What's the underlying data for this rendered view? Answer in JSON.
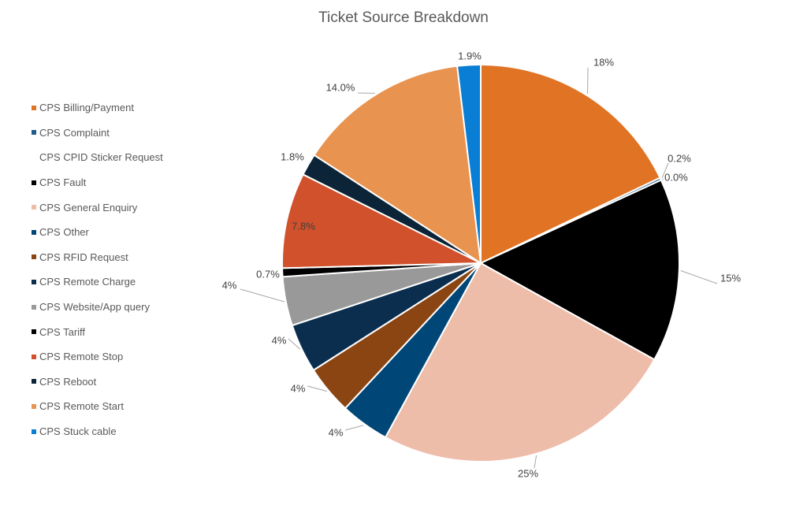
{
  "chart_data": {
    "type": "pie",
    "title": "Ticket Source Breakdown",
    "legend_position": "left",
    "slices": [
      {
        "name": "CPS Billing/Payment",
        "value": 18.0,
        "label": "18%",
        "color": "#E07424"
      },
      {
        "name": "CPS Complaint",
        "value": 0.2,
        "label": "0.2%",
        "color": "#1F5C8B"
      },
      {
        "name": "CPS CPID Sticker Request",
        "value": 0.0,
        "label": "0.0%",
        "color": "#FFFFFF"
      },
      {
        "name": "CPS Fault",
        "value": 15.0,
        "label": "15%",
        "color": "#000000"
      },
      {
        "name": "CPS General Enquiry",
        "value": 25.0,
        "label": "25%",
        "color": "#EEBDAA"
      },
      {
        "name": "CPS Other",
        "value": 4.0,
        "label": "4%",
        "color": "#004777"
      },
      {
        "name": "CPS RFID Request",
        "value": 4.0,
        "label": "4%",
        "color": "#8B4513"
      },
      {
        "name": "CPS Remote Charge",
        "value": 4.0,
        "label": "4%",
        "color": "#0B2E4F"
      },
      {
        "name": "CPS Website/App query",
        "value": 4.0,
        "label": "4%",
        "color": "#999999"
      },
      {
        "name": "CPS Tariff",
        "value": 0.7,
        "label": "0.7%",
        "color": "#000000"
      },
      {
        "name": "CPS Remote Stop",
        "value": 7.8,
        "label": "7.8%",
        "color": "#D0512B"
      },
      {
        "name": "CPS Reboot",
        "value": 1.8,
        "label": "1.8%",
        "color": "#0B2438"
      },
      {
        "name": "CPS Remote Start",
        "value": 14.0,
        "label": "14.0%",
        "color": "#E8934F"
      },
      {
        "name": "CPS Stuck cable",
        "value": 1.9,
        "label": "1.9%",
        "color": "#0A7DD4"
      }
    ]
  }
}
